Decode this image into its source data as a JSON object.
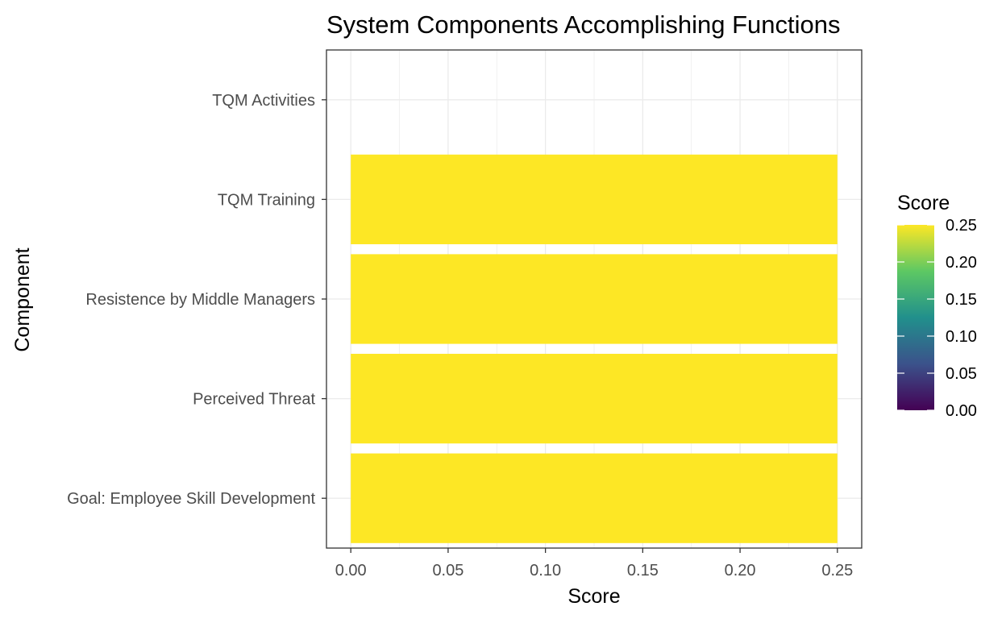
{
  "chart_data": {
    "type": "bar",
    "orientation": "horizontal",
    "title": "System Components Accomplishing Functions",
    "xlabel": "Score",
    "ylabel": "Component",
    "categories": [
      "Goal: Employee Skill Development",
      "Perceived Threat",
      "Resistence by Middle Managers",
      "TQM Training",
      "TQM Activities"
    ],
    "values": [
      0.25,
      0.25,
      0.25,
      0.25,
      0
    ],
    "xlim": [
      -0.0125,
      0.2625
    ],
    "x_ticks": [
      0,
      0.05,
      0.1,
      0.15,
      0.2,
      0.25
    ],
    "x_tick_labels": [
      "0.00",
      "0.05",
      "0.10",
      "0.15",
      "0.20",
      "0.25"
    ],
    "grid": true,
    "legend": {
      "title": "Score",
      "placement": "right",
      "type": "colorbar",
      "range": [
        0,
        0.25
      ],
      "ticks": [
        0,
        0.05,
        0.1,
        0.15,
        0.2,
        0.25
      ],
      "tick_labels": [
        "0.00",
        "0.05",
        "0.10",
        "0.15",
        "0.20",
        "0.25"
      ]
    },
    "colors": {
      "bar_fill": "#FDE725",
      "gradient": [
        "#440154",
        "#3B528B",
        "#21908C",
        "#5DC863",
        "#FDE725"
      ],
      "grid": "#EBEBEB",
      "panel_border": "#333333"
    }
  }
}
